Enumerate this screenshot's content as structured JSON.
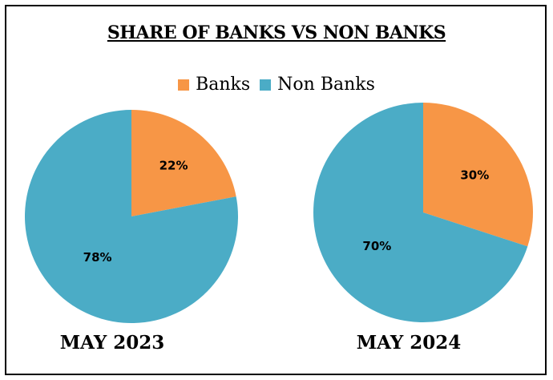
{
  "chart_data": {
    "type": "pie",
    "title": "SHARE OF BANKS VS NON BANKS",
    "legend": {
      "placement": "top-center",
      "entries": [
        {
          "label": "Banks",
          "color": "#F79646"
        },
        {
          "label": "Non Banks",
          "color": "#4BACC6"
        }
      ]
    },
    "pies": [
      {
        "label": "MAY 2023",
        "slices": [
          {
            "name": "Banks",
            "value": 22,
            "label": "22%",
            "color": "#F79646"
          },
          {
            "name": "Non Banks",
            "value": 78,
            "label": "78%",
            "color": "#4BACC6"
          }
        ]
      },
      {
        "label": "MAY 2024",
        "slices": [
          {
            "name": "Banks",
            "value": 30,
            "label": "30%",
            "color": "#F79646"
          },
          {
            "name": "Non Banks",
            "value": 70,
            "label": "70%",
            "color": "#4BACC6"
          }
        ]
      }
    ]
  }
}
